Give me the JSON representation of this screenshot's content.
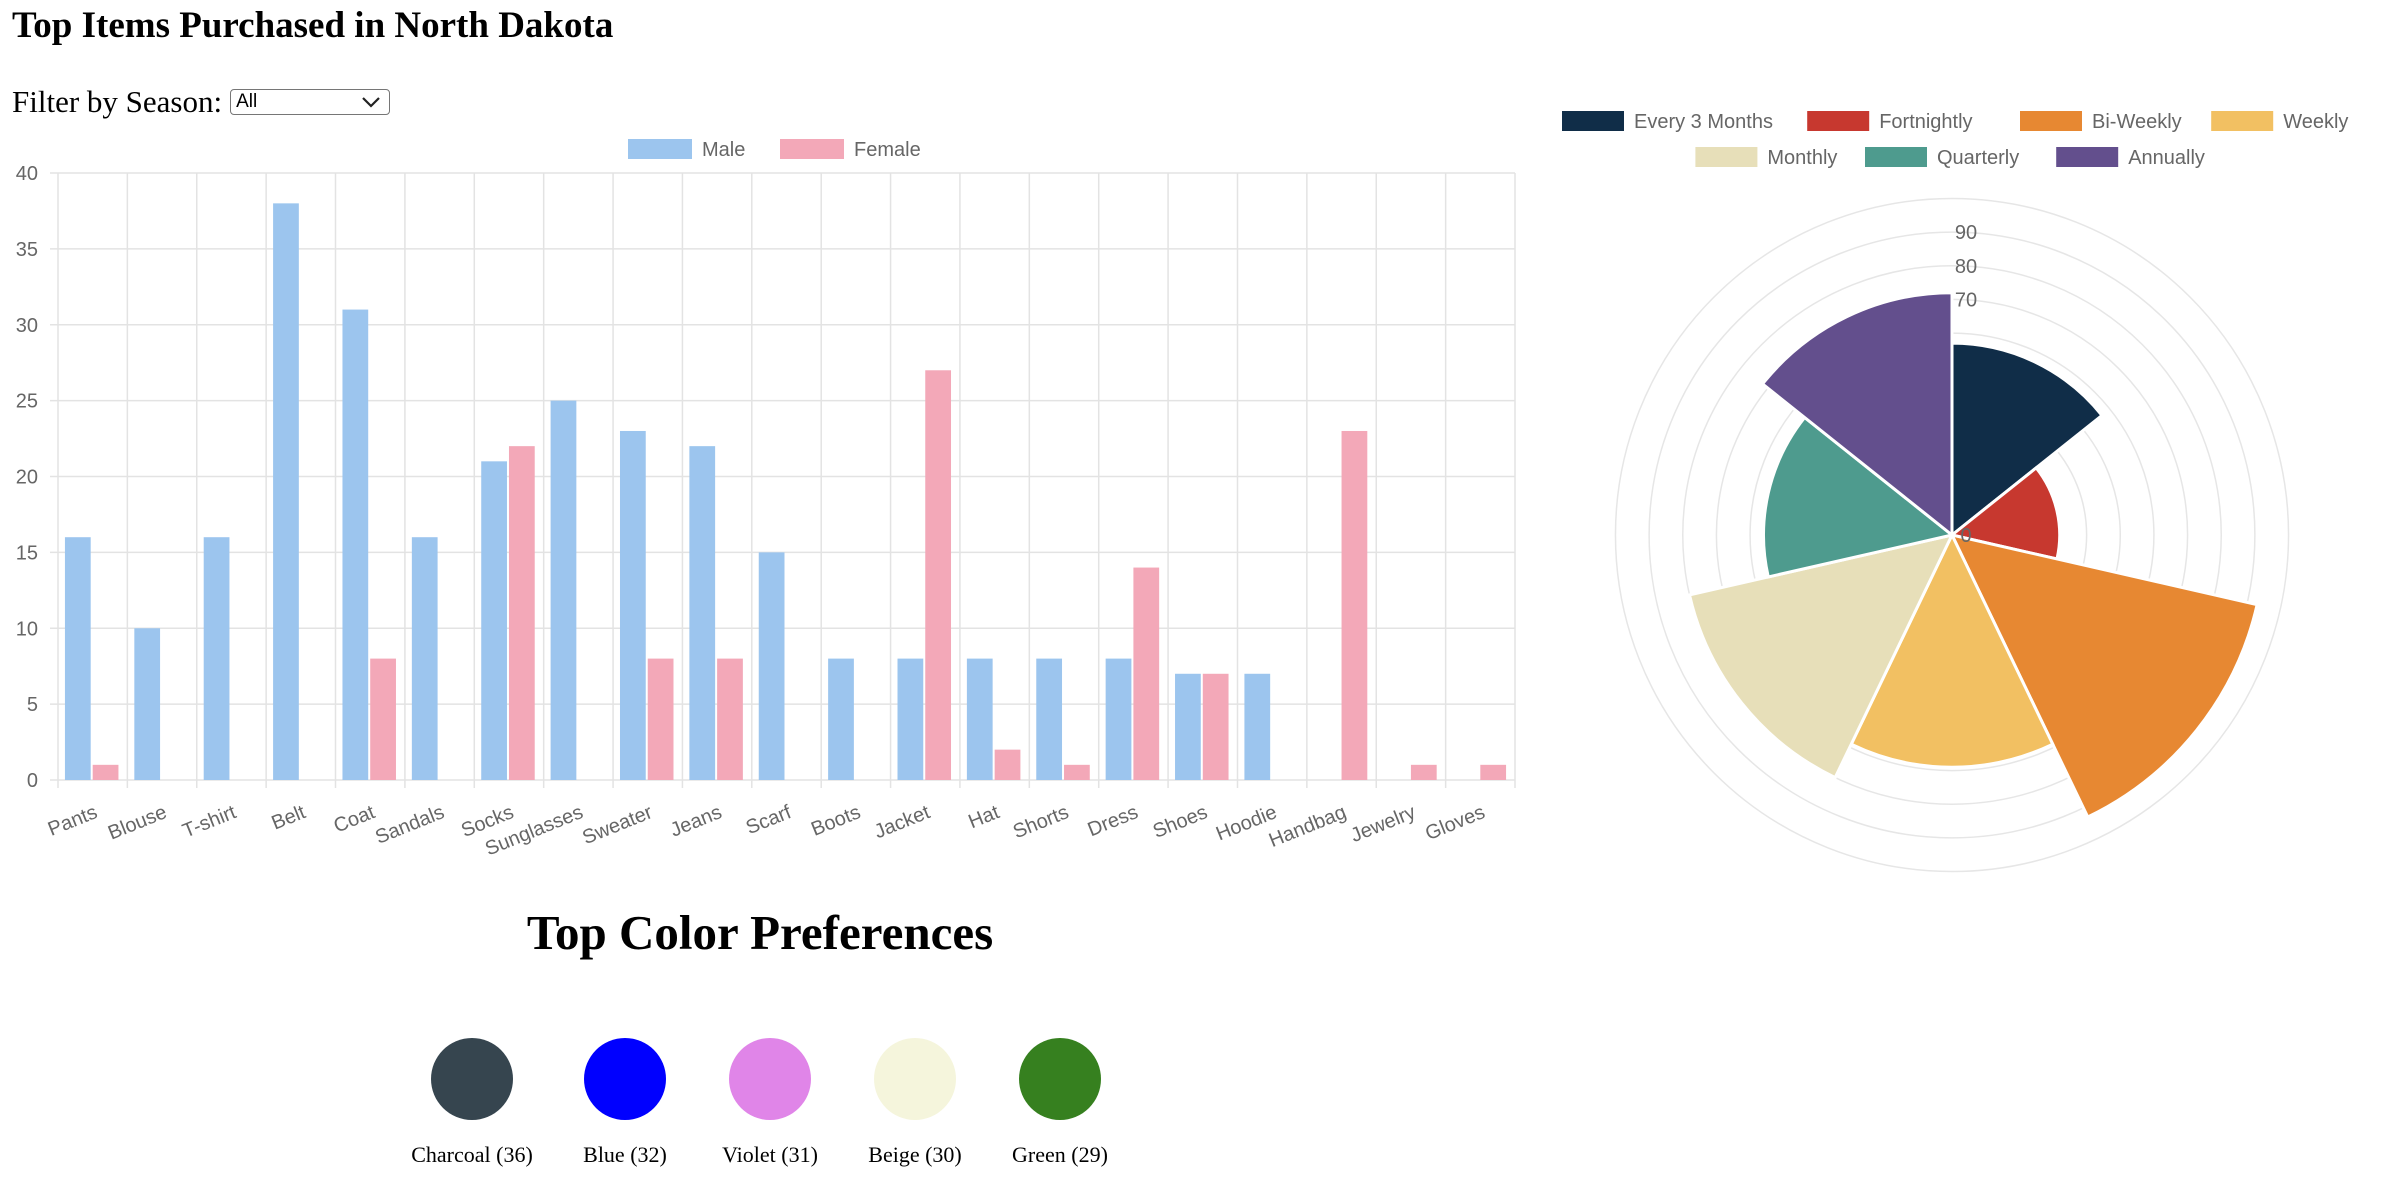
{
  "page_title": "Top Items Purchased in North Dakota",
  "filter": {
    "label": "Filter by Season:",
    "selected": "All",
    "icon": "chevron-down-icon"
  },
  "chart_data": [
    {
      "type": "bar",
      "categories": [
        "Pants",
        "Blouse",
        "T-shirt",
        "Belt",
        "Coat",
        "Sandals",
        "Socks",
        "Sunglasses",
        "Sweater",
        "Jeans",
        "Scarf",
        "Boots",
        "Jacket",
        "Hat",
        "Shorts",
        "Dress",
        "Shoes",
        "Hoodie",
        "Handbag",
        "Jewelry",
        "Gloves"
      ],
      "series": [
        {
          "name": "Male",
          "color": "#9cc5ee",
          "values": [
            16,
            10,
            16,
            38,
            31,
            16,
            21,
            25,
            23,
            22,
            15,
            8,
            8,
            8,
            8,
            8,
            7,
            7,
            0,
            0,
            0
          ]
        },
        {
          "name": "Female",
          "color": "#f3a8b8",
          "values": [
            1,
            0,
            0,
            0,
            8,
            0,
            22,
            0,
            8,
            8,
            0,
            0,
            27,
            2,
            1,
            14,
            7,
            0,
            23,
            1,
            1
          ]
        }
      ],
      "ylim": [
        0,
        40
      ],
      "yticks": [
        0,
        5,
        10,
        15,
        20,
        25,
        30,
        35,
        40
      ],
      "grid": true,
      "legend": "top-center"
    },
    {
      "type": "polar-area",
      "labels": [
        "Every 3 Months",
        "Fortnightly",
        "Bi-Weekly",
        "Weekly",
        "Monthly",
        "Quarterly",
        "Annually"
      ],
      "colors": [
        "#102d48",
        "#c7382f",
        "#e78832",
        "#f2c062",
        "#e7dfb9",
        "#4e9b8e",
        "#634f8d"
      ],
      "values": [
        57,
        32,
        93,
        69,
        80,
        56,
        72
      ],
      "rticks": [
        0,
        70,
        80,
        90
      ],
      "rmax": 104,
      "grid": true,
      "legend": "top"
    }
  ],
  "colors_section": {
    "title": "Top Color Preferences",
    "items": [
      {
        "label": "Charcoal (36)",
        "color": "#36454f"
      },
      {
        "label": "Blue (32)",
        "color": "#0000ff"
      },
      {
        "label": "Violet (31)",
        "color": "#e085e8"
      },
      {
        "label": "Beige (30)",
        "color": "#f5f5dc"
      },
      {
        "label": "Green (29)",
        "color": "#36801f"
      }
    ]
  }
}
